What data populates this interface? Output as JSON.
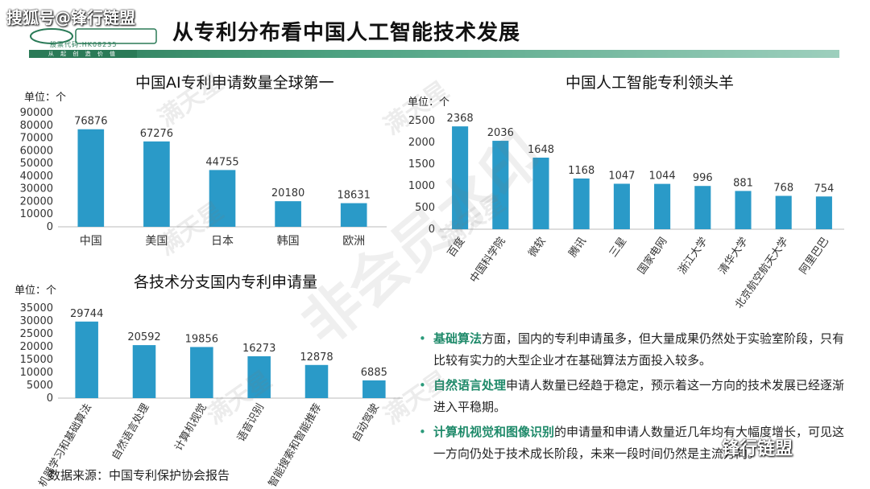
{
  "watermark": {
    "top_left": "搜狐号@锋行链盟",
    "bottom_right": "锋行链盟"
  },
  "logo": {
    "sub": "股票代码:HK08235",
    "band": "从 起 创 造 价 值"
  },
  "page_title": "从专利分布看中国人工智能技术发展",
  "charts": {
    "global": {
      "title": "中国AI专利申请数量全球第一",
      "unit": "单位：个"
    },
    "leaders": {
      "title": "中国人工智能专利领头羊",
      "unit": "单位：个"
    },
    "branches": {
      "title": "各技术分支国内专利申请量",
      "unit": "单位：个"
    }
  },
  "chart_data": [
    {
      "type": "bar",
      "title": "中国AI专利申请数量全球第一",
      "ylabel": "单位：个",
      "categories": [
        "中国",
        "美国",
        "日本",
        "韩国",
        "欧洲"
      ],
      "values": [
        76876,
        67276,
        44755,
        20180,
        18631
      ],
      "ylim": [
        0,
        90000
      ],
      "yticks": [
        0,
        10000,
        20000,
        30000,
        40000,
        50000,
        60000,
        70000,
        80000,
        90000
      ],
      "color": "#2a9ac8"
    },
    {
      "type": "bar",
      "title": "中国人工智能专利领头羊",
      "ylabel": "单位：个",
      "categories": [
        "百度",
        "中国科学院",
        "微软",
        "腾讯",
        "三星",
        "国家电网",
        "浙江大学",
        "清华大学",
        "北京航空航天大学",
        "阿里巴巴"
      ],
      "values": [
        2368,
        2036,
        1648,
        1168,
        1047,
        1044,
        996,
        881,
        768,
        754
      ],
      "ylim": [
        0,
        2500
      ],
      "yticks": [
        0,
        500,
        1000,
        1500,
        2000,
        2500
      ],
      "color": "#2a9ac8"
    },
    {
      "type": "bar",
      "title": "各技术分支国内专利申请量",
      "ylabel": "单位：个",
      "categories": [
        "机器学习和基础算法",
        "自然语言处理",
        "计算机视觉",
        "语音识别",
        "智能搜索和智能推荐",
        "自动驾驶"
      ],
      "values": [
        29744,
        20592,
        19856,
        16273,
        12878,
        6885
      ],
      "ylim": [
        0,
        35000
      ],
      "yticks": [
        0,
        5000,
        10000,
        15000,
        20000,
        25000,
        30000,
        35000
      ],
      "color": "#2a9ac8"
    }
  ],
  "bullets": [
    {
      "keyword": "基础算法",
      "text": "方面，国内的专利申请虽多，但大量成果仍然处于实验室阶段，只有比较有实力的大型企业才在基础算法方面投入较多。"
    },
    {
      "keyword": "自然语言处理",
      "text": "申请人数量已经趋于稳定，预示着这一方向的技术发展已经逐渐进入平稳期。"
    },
    {
      "keyword": "计算机视觉和图像识别",
      "text": "的申请量和申请人数量近几年均有大幅度增长，可见这一方向仍处于技术成长阶段，未来一段时间仍然是主流方向。"
    }
  ],
  "source": "数据来源：中国专利保护协会报告",
  "watermarks": [
    "满天星",
    "非会员水印"
  ]
}
